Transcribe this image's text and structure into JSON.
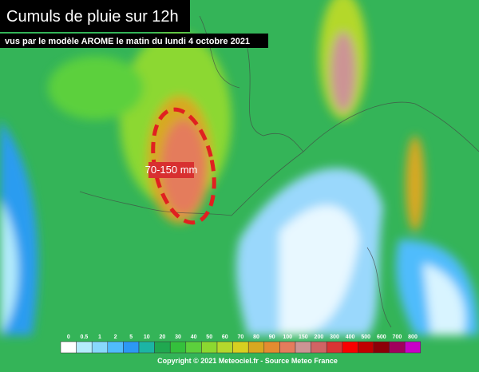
{
  "header": {
    "title": "Cumuls de pluie sur 12h",
    "subtitle": "vus par le modèle AROME le matin du lundi 4 octobre 2021"
  },
  "annotation": {
    "label": "70-150 mm"
  },
  "legend": {
    "items": [
      {
        "label": "0",
        "color": "#ffffff"
      },
      {
        "label": "0.5",
        "color": "#b4ecfc"
      },
      {
        "label": "1",
        "color": "#88d8fc"
      },
      {
        "label": "2",
        "color": "#50bcfc"
      },
      {
        "label": "5",
        "color": "#2c98f4"
      },
      {
        "label": "10",
        "color": "#1cb4a4"
      },
      {
        "label": "20",
        "color": "#20a850"
      },
      {
        "label": "30",
        "color": "#34c03c"
      },
      {
        "label": "40",
        "color": "#5cd03c"
      },
      {
        "label": "50",
        "color": "#8cd830"
      },
      {
        "label": "60",
        "color": "#b4d82c"
      },
      {
        "label": "70",
        "color": "#d8d020"
      },
      {
        "label": "80",
        "color": "#d8a820"
      },
      {
        "label": "90",
        "color": "#e48c30"
      },
      {
        "label": "100",
        "color": "#e47c5c"
      },
      {
        "label": "150",
        "color": "#cc9494"
      },
      {
        "label": "200",
        "color": "#d06464"
      },
      {
        "label": "300",
        "color": "#d83434"
      },
      {
        "label": "400",
        "color": "#f80000"
      },
      {
        "label": "500",
        "color": "#c00000"
      },
      {
        "label": "600",
        "color": "#8c0008"
      },
      {
        "label": "700",
        "color": "#a0005c"
      },
      {
        "label": "800",
        "color": "#c800c8"
      }
    ]
  },
  "footer": {
    "copyright": "Copyright © 2021 Meteociel.fr - Source Meteo France"
  }
}
